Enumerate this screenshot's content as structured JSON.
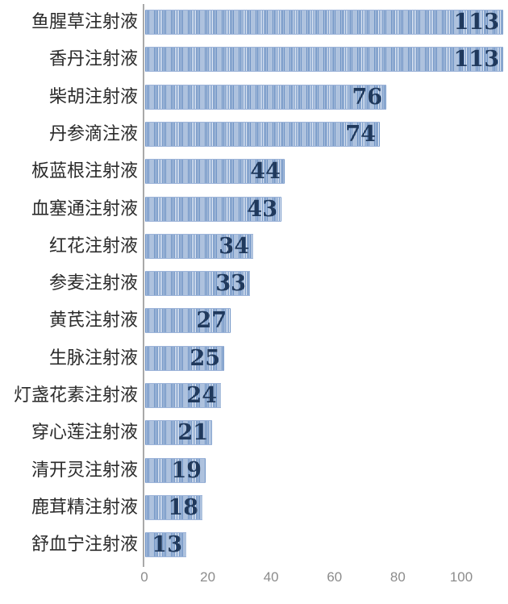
{
  "chart_data": {
    "type": "bar",
    "orientation": "horizontal",
    "title": "",
    "xlabel": "",
    "ylabel": "",
    "categories": [
      "鱼腥草注射液",
      "香丹注射液",
      "柴胡注射液",
      "丹参滴注液",
      "板蓝根注射液",
      "血塞通注射液",
      "红花注射液",
      "参麦注射液",
      "黄芪注射液",
      "生脉注射液",
      "灯盏花素注射液",
      "穿心莲注射液",
      "清开灵注射液",
      "鹿茸精注射液",
      "舒血宁注射液"
    ],
    "values": [
      113,
      113,
      76,
      74,
      44,
      43,
      34,
      33,
      27,
      25,
      24,
      21,
      19,
      18,
      13
    ],
    "data_labels_shown": true,
    "x_ticks": [
      0,
      20,
      40,
      60,
      80,
      100
    ],
    "xlim": [
      0,
      115
    ],
    "grid": false,
    "legend": "none",
    "colors": {
      "bar_stripe_dark": "#6d92c4",
      "bar_stripe_light": "#eef2f9",
      "value_label_text": "#20395c",
      "category_label_text": "#2b2b2b",
      "axis_line": "#a9a9a9",
      "tick_label_text": "#8c8c8c",
      "background": "#ffffff"
    }
  }
}
